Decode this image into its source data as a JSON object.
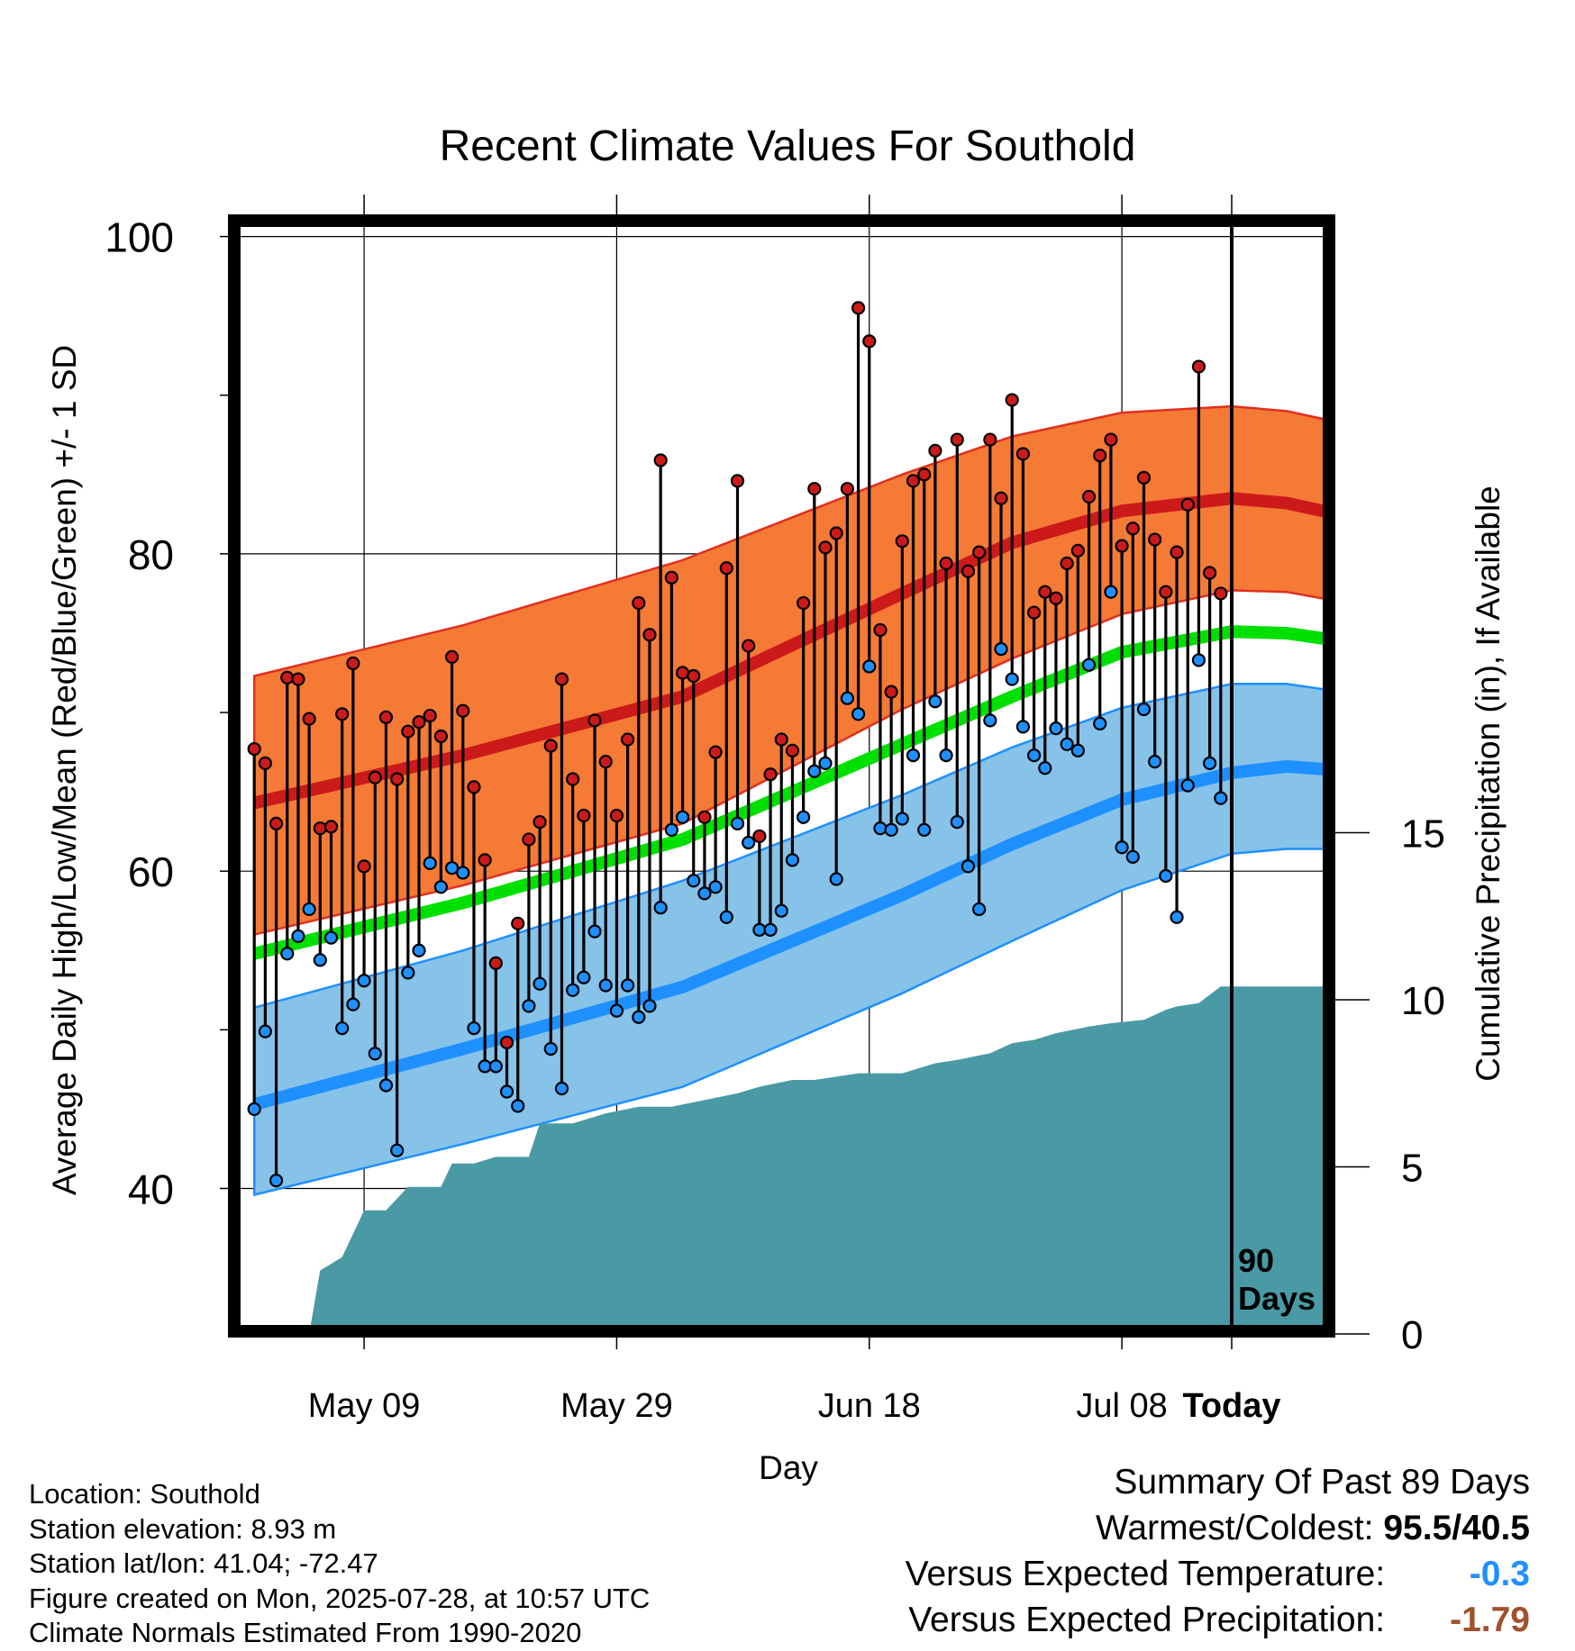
{
  "chart_data": {
    "type": "line",
    "title": "Recent Climate Values For Southold",
    "xlabel": "Day",
    "ylabel": "Average Daily High/Low/Mean (Red/Blue/Green) +/- 1 SD",
    "y2label": "Cumulative Precipitation (in), If Available",
    "xticks": [
      "May 09",
      "May 29",
      "Jun 18",
      "Jul 08",
      "Today"
    ],
    "yticks": [
      40,
      60,
      80,
      100
    ],
    "y2ticks": [
      0,
      5,
      10,
      15
    ],
    "ylim": [
      31,
      101
    ],
    "y2lim": [
      0,
      50
    ],
    "x_range_days": [
      -90,
      9
    ],
    "today_marker": "90\nDays",
    "grid": true,
    "days_ago": [
      89,
      88,
      87,
      86,
      85,
      84,
      83,
      82,
      81,
      80,
      79,
      78,
      77,
      76,
      75,
      74,
      73,
      72,
      71,
      70,
      69,
      68,
      67,
      66,
      65,
      64,
      63,
      62,
      61,
      60,
      59,
      58,
      57,
      56,
      55,
      54,
      53,
      52,
      51,
      50,
      49,
      48,
      47,
      46,
      45,
      44,
      43,
      42,
      41,
      40,
      39,
      38,
      37,
      36,
      35,
      34,
      33,
      32,
      31,
      30,
      29,
      28,
      27,
      26,
      25,
      24,
      23,
      22,
      21,
      20,
      19,
      18,
      17,
      16,
      15,
      14,
      13,
      12,
      11,
      10,
      9,
      8,
      7,
      6,
      5,
      4,
      3,
      2,
      1
    ],
    "highs": [
      67.7,
      66.8,
      63.0,
      72.2,
      72.1,
      69.6,
      62.7,
      62.8,
      69.9,
      73.1,
      60.3,
      65.9,
      69.7,
      65.8,
      68.8,
      69.4,
      69.8,
      68.5,
      73.5,
      70.1,
      65.3,
      60.7,
      54.2,
      49.2,
      56.7,
      62.0,
      63.1,
      67.9,
      72.1,
      65.8,
      63.5,
      69.5,
      66.9,
      63.5,
      68.3,
      76.9,
      74.9,
      85.9,
      78.5,
      72.5,
      72.3,
      63.4,
      67.5,
      79.1,
      84.6,
      74.2,
      62.2,
      66.1,
      68.3,
      67.6,
      76.9,
      84.1,
      80.4,
      81.3,
      84.1,
      95.5,
      93.4,
      75.2,
      71.3,
      80.8,
      84.6,
      85.0,
      86.5,
      79.4,
      87.2,
      78.9,
      80.1,
      87.2,
      83.5,
      89.7,
      86.3,
      76.3,
      77.6,
      77.2,
      79.4,
      80.2,
      83.6,
      86.2,
      87.2,
      80.5,
      81.6,
      84.8,
      80.9,
      77.6,
      80.1,
      83.1,
      91.8,
      78.8,
      77.5
    ],
    "lows": [
      45.0,
      49.9,
      40.5,
      54.8,
      55.9,
      57.6,
      54.4,
      55.8,
      50.1,
      51.6,
      53.1,
      48.5,
      46.5,
      42.4,
      53.6,
      55.0,
      60.5,
      59.0,
      60.2,
      59.9,
      50.1,
      47.7,
      47.7,
      46.1,
      45.2,
      51.5,
      52.9,
      48.8,
      46.3,
      52.5,
      53.3,
      56.2,
      52.8,
      51.2,
      52.8,
      50.8,
      51.5,
      57.7,
      62.6,
      63.4,
      59.4,
      58.6,
      59.0,
      57.1,
      63.0,
      61.8,
      56.3,
      56.3,
      57.5,
      60.7,
      63.4,
      66.3,
      66.8,
      59.5,
      70.9,
      69.9,
      72.9,
      62.7,
      62.6,
      63.3,
      67.3,
      62.6,
      70.7,
      67.3,
      63.1,
      60.3,
      57.6,
      69.5,
      74.0,
      72.1,
      69.1,
      67.3,
      66.5,
      69.0,
      68.0,
      67.6,
      73.0,
      69.3,
      77.6,
      61.5,
      60.9,
      70.2,
      66.9,
      59.7,
      57.1,
      65.4,
      73.3,
      66.8,
      64.6
    ],
    "normal_high": {
      "days_ago": [
        89,
        70,
        50,
        30,
        20,
        10,
        0,
        -5,
        -9
      ],
      "values": [
        64.3,
        67.3,
        71.0,
        77.5,
        80.7,
        82.7,
        83.5,
        83.2,
        82.6
      ]
    },
    "normal_low": {
      "days_ago": [
        89,
        70,
        50,
        30,
        20,
        10,
        0,
        -5,
        -9
      ],
      "values": [
        45.3,
        48.8,
        52.7,
        58.5,
        61.7,
        64.5,
        66.2,
        66.6,
        66.4
      ]
    },
    "normal_mean": {
      "days_ago": [
        89,
        70,
        50,
        30,
        20,
        10,
        0,
        -5,
        -9
      ],
      "values": [
        54.8,
        58.0,
        62.0,
        68.0,
        71.0,
        73.8,
        75.1,
        75.0,
        74.6
      ]
    },
    "high_band_upper": {
      "days_ago": [
        89,
        70,
        50,
        30,
        20,
        10,
        0,
        -5,
        -9
      ],
      "values": [
        72.3,
        75.5,
        79.6,
        85.0,
        87.4,
        88.9,
        89.3,
        89.0,
        88.4
      ]
    },
    "high_band_lower": {
      "days_ago": [
        89,
        70,
        50,
        30,
        20,
        10,
        0,
        -5,
        -9
      ],
      "values": [
        56.0,
        59.1,
        63.0,
        70.2,
        73.4,
        76.2,
        77.7,
        77.6,
        77.1
      ]
    },
    "low_band_upper": {
      "days_ago": [
        89,
        70,
        50,
        30,
        20,
        10,
        0,
        -5,
        -9
      ],
      "values": [
        51.4,
        55.0,
        59.4,
        64.8,
        67.8,
        70.3,
        71.8,
        71.8,
        71.4
      ]
    },
    "low_band_lower": {
      "days_ago": [
        89,
        70,
        50,
        30,
        20,
        10,
        0,
        -5,
        -9
      ],
      "values": [
        39.6,
        42.8,
        46.4,
        52.3,
        55.6,
        58.8,
        61.1,
        61.4,
        61.4
      ]
    },
    "precip_cumulative": {
      "days_ago": [
        89,
        84,
        83,
        81,
        79,
        77,
        75,
        72,
        71,
        69,
        67,
        64,
        63,
        60,
        57,
        54,
        51,
        45,
        43,
        40,
        38,
        34,
        30,
        27,
        25,
        22,
        20,
        18,
        16,
        13,
        11,
        8,
        6,
        5,
        3,
        1,
        0,
        -9
      ],
      "values": [
        0,
        0,
        1.9,
        2.3,
        3.7,
        3.7,
        4.4,
        4.4,
        5.1,
        5.1,
        5.3,
        5.3,
        6.3,
        6.3,
        6.6,
        6.8,
        6.8,
        7.2,
        7.4,
        7.6,
        7.6,
        7.8,
        7.8,
        8.1,
        8.2,
        8.4,
        8.7,
        8.8,
        9.0,
        9.2,
        9.3,
        9.4,
        9.7,
        9.8,
        9.9,
        10.4,
        10.4,
        10.4
      ]
    },
    "series": [
      {
        "name": "High",
        "color": "#cc1a1a"
      },
      {
        "name": "Low",
        "color": "#1e90ff"
      },
      {
        "name": "Mean",
        "color": "#00e000"
      }
    ],
    "colors": {
      "high_band": "#f47a35",
      "low_band": "#87c2e8",
      "precip": "#4a9aa5"
    }
  },
  "info": {
    "location": "Location: Southold",
    "elevation": "Station elevation: 8.93 m",
    "latlon": "Station lat/lon: 41.04; -72.47",
    "created": "Figure created on Mon, 2025-07-28, at 10:57 UTC",
    "normals": "Climate Normals Estimated From 1990-2020"
  },
  "summary": {
    "title": "Summary Of Past 89 Days",
    "warm_cold_label": "Warmest/Coldest:",
    "warmest": "95.5",
    "slash": "/",
    "coldest": "40.5",
    "temp_label": "Versus Expected Temperature:",
    "temp_value": "-0.3",
    "temp_color": "#1e90ff",
    "precip_label": "Versus Expected Precipitation:",
    "precip_value": "-1.79",
    "precip_color": "#a0522d"
  }
}
